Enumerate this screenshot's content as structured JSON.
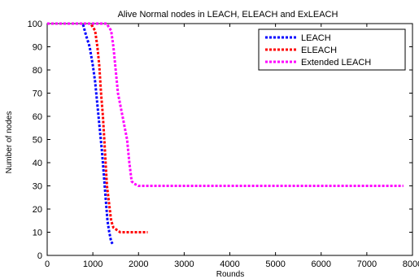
{
  "chart_data": {
    "type": "line",
    "title": "Alive Normal nodes in LEACH, ELEACH and ExLEACH",
    "xlabel": "Rounds",
    "ylabel": "Number of nodes",
    "xlim": [
      0,
      8000
    ],
    "ylim": [
      0,
      100
    ],
    "xticks": [
      0,
      1000,
      2000,
      3000,
      4000,
      5000,
      6000,
      7000,
      8000
    ],
    "yticks": [
      0,
      10,
      20,
      30,
      40,
      50,
      60,
      70,
      80,
      90,
      100
    ],
    "grid": false,
    "legend_position": "top-right",
    "series": [
      {
        "name": "LEACH",
        "color": "#0000ff",
        "x": [
          0,
          780,
          850,
          930,
          1000,
          1050,
          1100,
          1150,
          1200,
          1240,
          1280,
          1320,
          1360,
          1400,
          1430
        ],
        "y": [
          100,
          100,
          95,
          90,
          82,
          75,
          65,
          55,
          45,
          35,
          25,
          15,
          10,
          6,
          5
        ]
      },
      {
        "name": "ELEACH",
        "color": "#ff0000",
        "x": [
          0,
          950,
          1050,
          1100,
          1140,
          1180,
          1220,
          1250,
          1280,
          1310,
          1340,
          1370,
          1400,
          1450,
          1600,
          2000,
          2200
        ],
        "y": [
          100,
          100,
          97,
          90,
          82,
          70,
          60,
          50,
          40,
          30,
          25,
          20,
          15,
          12,
          10,
          10,
          10
        ]
      },
      {
        "name": "Extended LEACH",
        "color": "#ff00ff",
        "x": [
          0,
          1300,
          1400,
          1450,
          1500,
          1550,
          1600,
          1650,
          1700,
          1750,
          1800,
          1850,
          1900,
          2000,
          2300,
          4200,
          7800
        ],
        "y": [
          100,
          100,
          97,
          90,
          80,
          70,
          65,
          60,
          55,
          50,
          40,
          32,
          31,
          30,
          30,
          30,
          30
        ]
      }
    ]
  }
}
